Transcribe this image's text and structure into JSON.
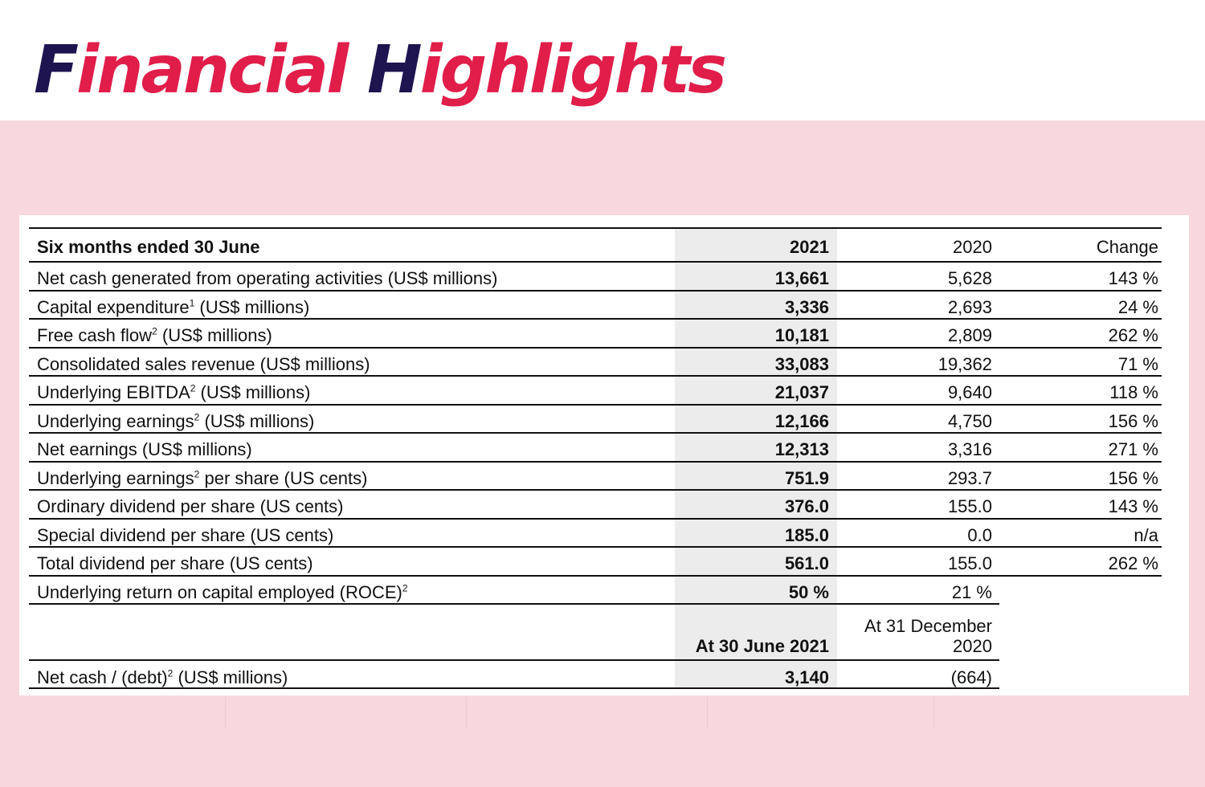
{
  "title": {
    "part1_cap": "F",
    "part1_rest": "inancial",
    "part2_cap": "H",
    "part2_rest": "ighlights"
  },
  "table": {
    "header": {
      "label": "Six months ended 30 June",
      "y2021": "2021",
      "y2020": "2020",
      "change": "Change"
    },
    "rows": [
      {
        "label": "Net cash generated from operating activities (US$ millions)",
        "sup": "",
        "label_after": "",
        "v2021": "13,661",
        "v2020": "5,628",
        "change": "143 %"
      },
      {
        "label": "Capital expenditure",
        "sup": "1",
        "label_after": " (US$ millions)",
        "v2021": "3,336",
        "v2020": "2,693",
        "change": "24 %"
      },
      {
        "label": "Free cash flow",
        "sup": "2",
        "label_after": " (US$ millions)",
        "v2021": "10,181",
        "v2020": "2,809",
        "change": "262 %"
      },
      {
        "label": "Consolidated sales revenue (US$ millions)",
        "sup": "",
        "label_after": "",
        "v2021": "33,083",
        "v2020": "19,362",
        "change": "71 %"
      },
      {
        "label": "Underlying EBITDA",
        "sup": "2",
        "label_after": " (US$ millions)",
        "v2021": "21,037",
        "v2020": "9,640",
        "change": "118 %"
      },
      {
        "label": "Underlying earnings",
        "sup": "2",
        "label_after": " (US$ millions)",
        "v2021": "12,166",
        "v2020": "4,750",
        "change": "156 %"
      },
      {
        "label": "Net earnings (US$ millions)",
        "sup": "",
        "label_after": "",
        "v2021": "12,313",
        "v2020": "3,316",
        "change": "271 %"
      },
      {
        "label": "Underlying earnings",
        "sup": "2",
        "label_after": " per share (US cents)",
        "v2021": "751.9",
        "v2020": "293.7",
        "change": "156 %"
      },
      {
        "label": "Ordinary dividend per share (US cents)",
        "sup": "",
        "label_after": "",
        "v2021": "376.0",
        "v2020": "155.0",
        "change": "143 %"
      },
      {
        "label": "Special dividend per share (US cents)",
        "sup": "",
        "label_after": "",
        "v2021": "185.0",
        "v2020": "0.0",
        "change": "n/a"
      },
      {
        "label": "Total dividend per share (US cents)",
        "sup": "",
        "label_after": "",
        "v2021": "561.0",
        "v2020": "155.0",
        "change": "262 %"
      },
      {
        "label": "Underlying return on capital employed (ROCE)",
        "sup": "2",
        "label_after": "",
        "v2021": "50 %",
        "v2020": "21 %",
        "change": ""
      }
    ],
    "balance_header": {
      "col2021": "At 30 June 2021",
      "col2020_line1": "At 31 December",
      "col2020_line2": "2020"
    },
    "balance_row": {
      "label": "Net cash / (debt)",
      "sup": "2",
      "label_after": " (US$ millions)",
      "v2021": "3,140",
      "v2020": "(664)"
    }
  }
}
